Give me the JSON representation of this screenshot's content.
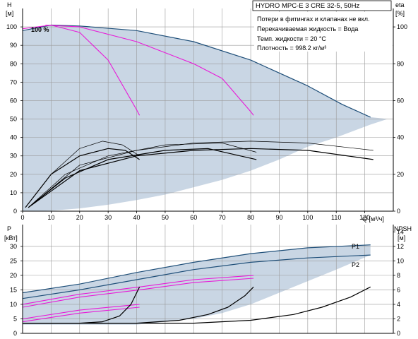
{
  "title_box": "HYDRO MPC-E 3 CRE 32-5, 50Hz",
  "info_lines": [
    "Потери в фитингах и клапанах не вкл.",
    "Перекачиваемая жидкость = Вода",
    "Темп. жидкости = 20 °C",
    "Плотность = 998.2 кг/м³"
  ],
  "percent_label": "100 %",
  "colors": {
    "envelope": "#c9d6e4",
    "envelope_edge": "#1f4f79",
    "magenta": "#e81ad8",
    "black": "#000000",
    "grid": "#9a9a9a"
  },
  "chart_data": [
    {
      "type": "line",
      "panel": "top",
      "ylabel_left": "H",
      "ylabel_left_unit": "[м]",
      "ylabel_right": "eta",
      "ylabel_right_unit": "[%]",
      "xlabel": "Q [м³/ч]",
      "xlim": [
        0,
        130
      ],
      "ylim": [
        0,
        110
      ],
      "y2lim": [
        0,
        110
      ],
      "xticks": [
        "0",
        "10",
        "20",
        "30",
        "40",
        "50",
        "60",
        "70",
        "80",
        "90",
        "100",
        "110",
        "120"
      ],
      "yticks": [
        "0",
        "10",
        "20",
        "30",
        "40",
        "50",
        "60",
        "70",
        "80",
        "90",
        "100"
      ],
      "y2ticks": [
        "0",
        "20",
        "40",
        "60",
        "80",
        "100"
      ],
      "grid": true,
      "envelope": [
        [
          0,
          98
        ],
        [
          10,
          101
        ],
        [
          20,
          100.5
        ],
        [
          40,
          98
        ],
        [
          60,
          92
        ],
        [
          80,
          82
        ],
        [
          100,
          68
        ],
        [
          110,
          60
        ],
        [
          116,
          55
        ],
        [
          122,
          51
        ],
        [
          128,
          50
        ],
        [
          122,
          47
        ],
        [
          110,
          40
        ],
        [
          100,
          35
        ],
        [
          90,
          28
        ],
        [
          80,
          22
        ],
        [
          70,
          17
        ],
        [
          60,
          13
        ],
        [
          50,
          9
        ],
        [
          40,
          6
        ],
        [
          30,
          3.5
        ],
        [
          20,
          1.5
        ],
        [
          10,
          0.3
        ],
        [
          3,
          0
        ],
        [
          0,
          0
        ]
      ],
      "series": [
        {
          "style": "edge",
          "x": [
            0,
            10,
            20,
            40,
            60,
            80,
            100,
            112,
            122
          ],
          "y": [
            98,
            101,
            100.5,
            98,
            92,
            82,
            68,
            58,
            51
          ]
        },
        {
          "style": "magenta",
          "x": [
            0,
            10,
            20,
            30,
            40,
            41
          ],
          "y": [
            99,
            101,
            97,
            82,
            55,
            52
          ]
        },
        {
          "style": "magenta",
          "x": [
            8,
            20,
            40,
            60,
            70,
            80,
            81
          ],
          "y": [
            101,
            100,
            92,
            80,
            72,
            54,
            52
          ]
        },
        {
          "style": "black_thin",
          "x": [
            1,
            10,
            20,
            28,
            35,
            41
          ],
          "y": [
            2,
            20,
            34,
            38,
            36,
            30
          ]
        },
        {
          "style": "black_thin",
          "x": [
            2,
            15,
            30,
            50,
            70,
            82
          ],
          "y": [
            2,
            20,
            30,
            36,
            37,
            32
          ]
        },
        {
          "style": "black_thin",
          "x": [
            2,
            20,
            40,
            60,
            80,
            100,
            123
          ],
          "y": [
            2,
            25,
            33,
            37,
            38,
            37,
            33
          ]
        },
        {
          "style": "black",
          "x": [
            1,
            10,
            20,
            30,
            36,
            41
          ],
          "y": [
            2,
            20,
            30,
            34,
            33,
            28
          ]
        },
        {
          "style": "black",
          "x": [
            2,
            15,
            30,
            50,
            65,
            82
          ],
          "y": [
            2,
            18,
            28,
            33,
            34,
            28
          ]
        },
        {
          "style": "black",
          "x": [
            2,
            20,
            40,
            60,
            80,
            100,
            123
          ],
          "y": [
            2,
            22,
            30,
            33,
            34,
            33,
            28
          ]
        }
      ]
    },
    {
      "type": "line",
      "panel": "bottom",
      "ylabel_left": "P",
      "ylabel_left_unit": "[кВт]",
      "ylabel_right": "NPSH",
      "ylabel_right_unit": "[м]",
      "xlim": [
        0,
        130
      ],
      "ylim": [
        0,
        37.5
      ],
      "y2lim": [
        0,
        15
      ],
      "yticks": [
        "0",
        "5",
        "10",
        "15",
        "20",
        "25",
        "30"
      ],
      "y2ticks": [
        "0",
        "2",
        "4",
        "6",
        "8",
        "10",
        "12",
        "14"
      ],
      "grid": true,
      "series_labels": [
        "P1",
        "P2"
      ],
      "envelope": [
        [
          0,
          14
        ],
        [
          20,
          17
        ],
        [
          40,
          21
        ],
        [
          60,
          24.5
        ],
        [
          80,
          27.5
        ],
        [
          100,
          29.5
        ],
        [
          122,
          30.5
        ],
        [
          122,
          27
        ],
        [
          110,
          22
        ],
        [
          100,
          18
        ],
        [
          90,
          14
        ],
        [
          80,
          10
        ],
        [
          70,
          7
        ],
        [
          60,
          5
        ],
        [
          50,
          4
        ],
        [
          40,
          3
        ],
        [
          20,
          3
        ],
        [
          0,
          3
        ]
      ],
      "series": [
        {
          "style": "edge",
          "name": "P1",
          "x": [
            0,
            20,
            40,
            60,
            80,
            100,
            122
          ],
          "y": [
            14,
            17,
            21,
            24.5,
            27.5,
            29.5,
            30.5
          ]
        },
        {
          "style": "edge",
          "name": "P2",
          "x": [
            0,
            20,
            40,
            60,
            80,
            100,
            122
          ],
          "y": [
            12,
            15,
            18.5,
            22,
            24.5,
            26,
            27
          ]
        },
        {
          "style": "magenta",
          "x": [
            0,
            20,
            41
          ],
          "y": [
            10,
            13.5,
            16
          ]
        },
        {
          "style": "magenta",
          "x": [
            0,
            20,
            41
          ],
          "y": [
            9,
            12.5,
            15
          ]
        },
        {
          "style": "magenta",
          "x": [
            0,
            20,
            41
          ],
          "y": [
            5,
            8,
            10
          ]
        },
        {
          "style": "magenta",
          "x": [
            0,
            20,
            41
          ],
          "y": [
            4,
            7,
            9
          ]
        },
        {
          "style": "magenta",
          "x": [
            41,
            60,
            81
          ],
          "y": [
            16,
            18.5,
            20
          ]
        },
        {
          "style": "magenta",
          "x": [
            41,
            60,
            81
          ],
          "y": [
            15,
            17.5,
            19
          ]
        },
        {
          "style": "black",
          "x": [
            0,
            20,
            28,
            34,
            38,
            41
          ],
          "y": [
            3.5,
            3.5,
            4,
            6,
            10,
            16
          ]
        },
        {
          "style": "black",
          "x": [
            0,
            40,
            55,
            65,
            72,
            78,
            81
          ],
          "y": [
            3.5,
            3.5,
            4.5,
            6.5,
            9,
            13,
            16
          ]
        },
        {
          "style": "black",
          "x": [
            0,
            60,
            80,
            95,
            105,
            115,
            122
          ],
          "y": [
            3.5,
            3.5,
            4.5,
            6.5,
            9,
            12.5,
            16
          ]
        }
      ]
    }
  ]
}
